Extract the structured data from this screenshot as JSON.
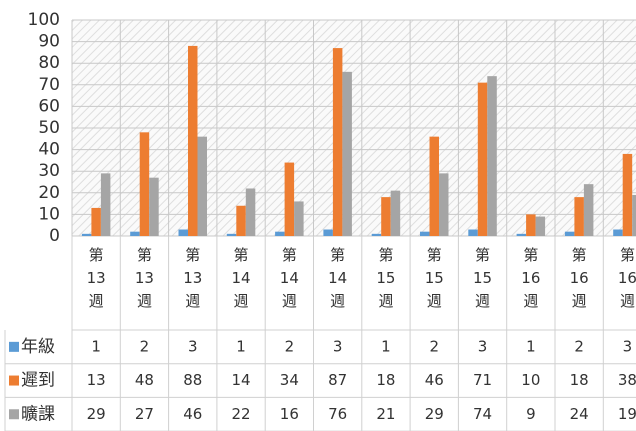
{
  "chart_data": {
    "type": "bar",
    "categories": [
      "第13週",
      "第13週",
      "第13週",
      "第14週",
      "第14週",
      "第14週",
      "第15週",
      "第15週",
      "第15週",
      "第16週",
      "第16週",
      "第16週"
    ],
    "series": [
      {
        "name": "年級",
        "color": "#5b9bd5",
        "values": [
          1,
          2,
          3,
          1,
          2,
          3,
          1,
          2,
          3,
          1,
          2,
          3
        ]
      },
      {
        "name": "遲到",
        "color": "#ed7d31",
        "values": [
          13,
          48,
          88,
          14,
          34,
          87,
          18,
          46,
          71,
          10,
          18,
          38
        ]
      },
      {
        "name": "曠課",
        "color": "#a5a5a5",
        "values": [
          29,
          27,
          46,
          22,
          16,
          76,
          21,
          29,
          74,
          9,
          24,
          19
        ]
      }
    ],
    "ylim": [
      0,
      100
    ],
    "yticks": [
      0,
      10,
      20,
      30,
      40,
      50,
      60,
      70,
      80,
      90,
      100
    ],
    "grid": true,
    "data_table": true
  }
}
